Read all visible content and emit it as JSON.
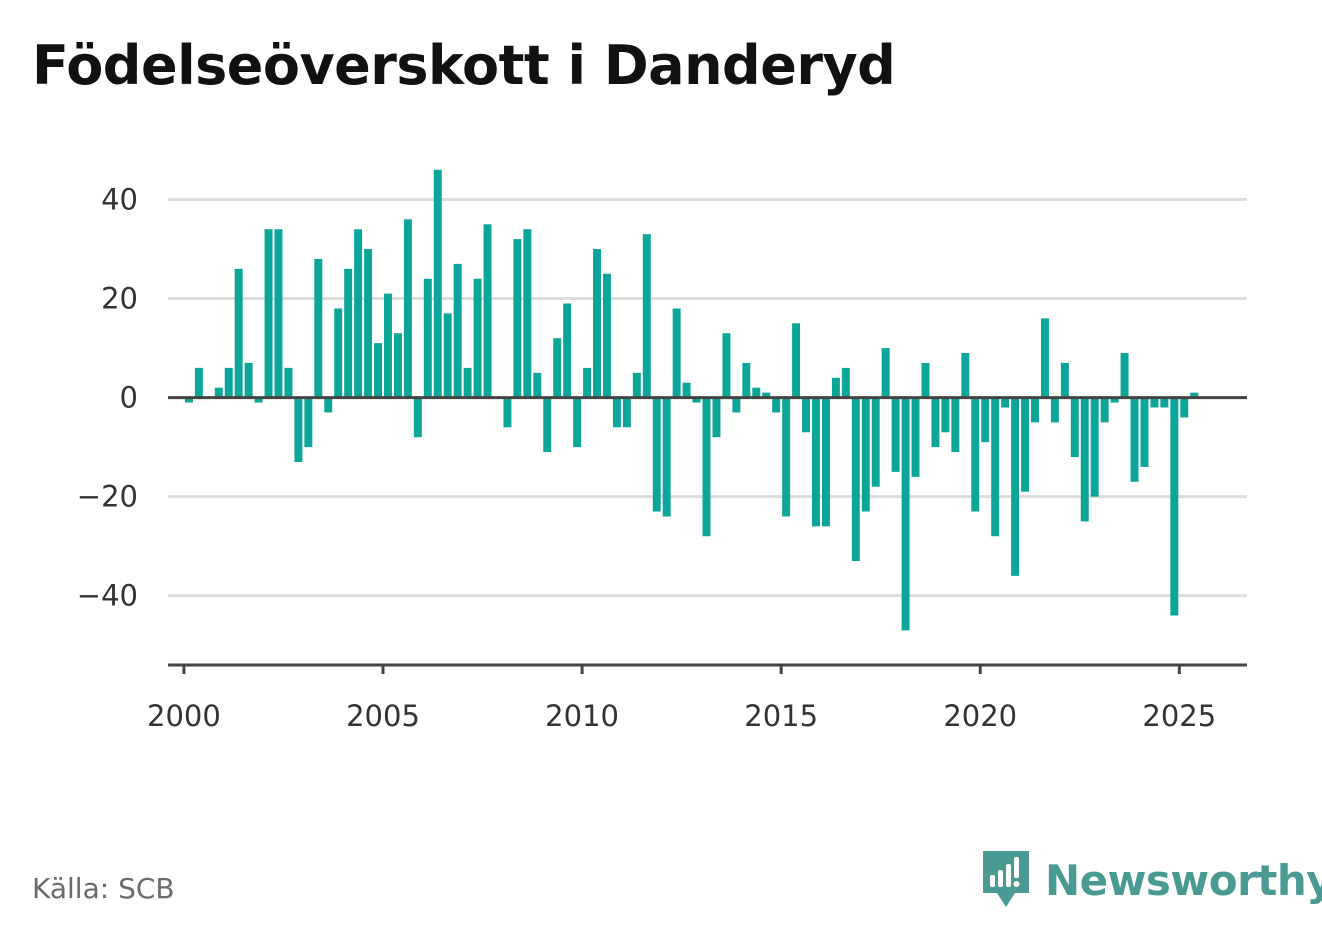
{
  "title": "Födelseöverskott i Danderyd",
  "source": "Källa: SCB",
  "brand": {
    "name": "Newsworthy",
    "icon": "newsworthy-logo-icon",
    "color": "#4a9a94"
  },
  "colors": {
    "bar": "#0ba59a",
    "grid": "#dddddd",
    "axis": "#444444"
  },
  "chart_data": {
    "type": "bar",
    "title": "Födelseöverskott i Danderyd",
    "xlabel": "",
    "ylabel": "",
    "x_ticks": [
      2000,
      2005,
      2010,
      2015,
      2020,
      2025
    ],
    "y_ticks": [
      -40,
      -20,
      0,
      20,
      40
    ],
    "ylim": [
      -54,
      50
    ],
    "xlim": [
      1999.6,
      2026.7
    ],
    "grid": true,
    "legend": "none",
    "frequency": "quarterly",
    "series": [
      {
        "start": [
          2000,
          1
        ],
        "values": [
          -1,
          6,
          0,
          2,
          6,
          26,
          7,
          -1,
          34,
          34,
          6,
          -13,
          -10,
          28,
          -3,
          18,
          26,
          34,
          30,
          11,
          21,
          13,
          36,
          -8,
          24,
          46,
          17,
          27,
          6,
          24,
          35,
          0,
          -6,
          32,
          34,
          5,
          -11,
          12,
          19,
          -10,
          6,
          30,
          25,
          -6,
          -6,
          5,
          33,
          -23,
          -24,
          18,
          3,
          -1,
          -28,
          -8,
          13,
          -3,
          7,
          2,
          1,
          -3,
          -24,
          15,
          -7,
          -26,
          -26,
          4,
          6,
          -33,
          -23,
          -18,
          10,
          -15,
          -47,
          -16,
          7,
          -10,
          -7,
          -11,
          9,
          -23,
          -9,
          -28,
          -2,
          -36,
          -19,
          -5,
          16,
          -5,
          7,
          -12,
          -25,
          -20,
          -5,
          -1,
          9,
          -17,
          -14,
          -2,
          -2,
          -44,
          -4,
          1
        ]
      }
    ]
  }
}
